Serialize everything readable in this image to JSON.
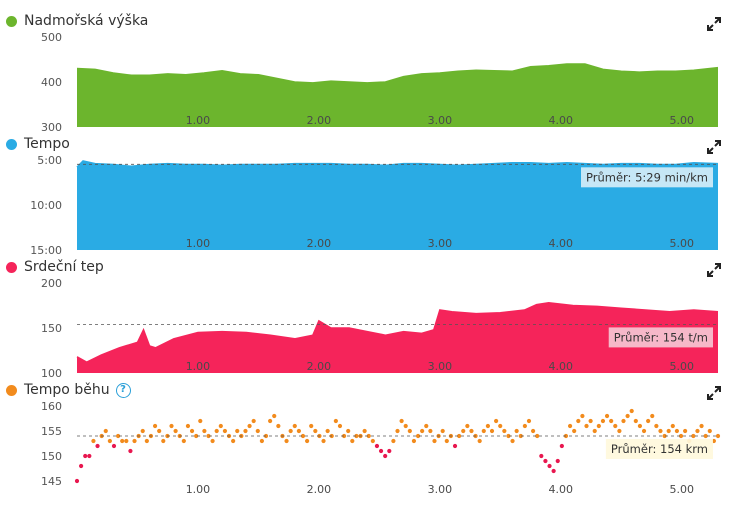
{
  "panels": [
    {
      "title": "Nadmořská výška",
      "color": "#6cb52d",
      "help": false,
      "chart_data": {
        "type": "area",
        "yticks": [
          "500",
          "400",
          "300"
        ],
        "ylim": [
          300,
          500
        ],
        "xticks": [
          "1.00",
          "2.00",
          "3.00",
          "4.00",
          "5.00"
        ],
        "x": [
          0,
          0.15,
          0.3,
          0.45,
          0.6,
          0.75,
          0.9,
          1.05,
          1.2,
          1.35,
          1.5,
          1.65,
          1.8,
          1.95,
          2.1,
          2.25,
          2.4,
          2.55,
          2.7,
          2.85,
          3.0,
          3.15,
          3.3,
          3.45,
          3.6,
          3.75,
          3.9,
          4.05,
          4.2,
          4.35,
          4.5,
          4.65,
          4.8,
          4.95,
          5.1,
          5.3
        ],
        "values": [
          430,
          428,
          420,
          415,
          415,
          418,
          416,
          420,
          425,
          418,
          416,
          408,
          400,
          398,
          402,
          400,
          398,
          400,
          412,
          418,
          420,
          424,
          426,
          425,
          424,
          434,
          436,
          440,
          440,
          428,
          424,
          422,
          424,
          424,
          426,
          432
        ],
        "average": null,
        "average_label": ""
      }
    },
    {
      "title": "Tempo",
      "color": "#2aabe4",
      "help": false,
      "chart_data": {
        "type": "area",
        "yticks": [
          "5:00",
          "10:00",
          "15:00"
        ],
        "ylim": [
          5,
          15
        ],
        "invert": true,
        "xticks": [
          "1.00",
          "2.00",
          "3.00",
          "4.00",
          "5.00"
        ],
        "x": [
          0,
          0.05,
          0.15,
          0.3,
          0.45,
          0.6,
          0.75,
          0.9,
          1.05,
          1.2,
          1.35,
          1.5,
          1.65,
          1.8,
          1.95,
          2.1,
          2.25,
          2.4,
          2.55,
          2.7,
          2.85,
          3.0,
          3.15,
          3.3,
          3.45,
          3.6,
          3.75,
          3.9,
          4.05,
          4.2,
          4.35,
          4.5,
          4.65,
          4.8,
          4.95,
          5.1,
          5.3
        ],
        "values": [
          5.8,
          5.1,
          5.4,
          5.5,
          5.7,
          5.5,
          5.4,
          5.5,
          5.5,
          5.6,
          5.5,
          5.5,
          5.5,
          5.4,
          5.4,
          5.4,
          5.5,
          5.5,
          5.6,
          5.4,
          5.4,
          5.5,
          5.6,
          5.5,
          5.4,
          5.3,
          5.3,
          5.4,
          5.3,
          5.4,
          5.5,
          5.4,
          5.4,
          5.5,
          5.5,
          5.3,
          5.4
        ],
        "average": 5.48,
        "average_label": "Průměr: 5:29 min/km"
      }
    },
    {
      "title": "Srdeční tep",
      "color": "#f5245a",
      "help": false,
      "chart_data": {
        "type": "area",
        "yticks": [
          "200",
          "150",
          "100"
        ],
        "ylim": [
          100,
          200
        ],
        "xticks": [
          "1.00",
          "2.00",
          "3.00",
          "4.00",
          "5.00"
        ],
        "x": [
          0,
          0.08,
          0.2,
          0.35,
          0.5,
          0.55,
          0.6,
          0.65,
          0.8,
          1.0,
          1.2,
          1.4,
          1.6,
          1.8,
          1.95,
          2.0,
          2.1,
          2.25,
          2.4,
          2.55,
          2.7,
          2.85,
          2.95,
          3.0,
          3.1,
          3.3,
          3.5,
          3.7,
          3.8,
          3.9,
          4.1,
          4.3,
          4.5,
          4.7,
          4.9,
          5.1,
          5.3
        ],
        "values": [
          118,
          112,
          120,
          128,
          134,
          148,
          130,
          128,
          138,
          145,
          146,
          145,
          142,
          138,
          142,
          158,
          150,
          150,
          146,
          142,
          146,
          144,
          148,
          170,
          168,
          166,
          167,
          170,
          176,
          178,
          175,
          174,
          172,
          170,
          168,
          170,
          168
        ],
        "average": 154,
        "average_label": "Průměr: 154 t/m"
      }
    },
    {
      "title": "Tempo běhu",
      "color": "#f28b1d",
      "help": true,
      "chart_data": {
        "type": "scatter",
        "yticks": [
          "160",
          "155",
          "150",
          "145"
        ],
        "ylim": [
          145,
          160
        ],
        "xticks": [
          "1.00",
          "2.00",
          "3.00",
          "4.00",
          "5.00"
        ],
        "x_range": [
          0,
          5.3
        ],
        "values": [
          145,
          148,
          150,
          150,
          153,
          152,
          154,
          155,
          153,
          152,
          154,
          153,
          153,
          151,
          153,
          154,
          155,
          153,
          154,
          156,
          155,
          153,
          154,
          156,
          155,
          154,
          153,
          156,
          155,
          154,
          157,
          155,
          154,
          153,
          155,
          156,
          155,
          154,
          153,
          155,
          154,
          155,
          156,
          157,
          155,
          153,
          154,
          157,
          158,
          156,
          154,
          153,
          155,
          156,
          155,
          154,
          153,
          156,
          155,
          154,
          153,
          155,
          154,
          157,
          156,
          154,
          155,
          153,
          154,
          154,
          155,
          154,
          153,
          152,
          151,
          150,
          151,
          153,
          155,
          157,
          156,
          155,
          153,
          154,
          155,
          156,
          155,
          153,
          154,
          155,
          153,
          154,
          152,
          154,
          155,
          156,
          155,
          154,
          153,
          155,
          156,
          155,
          157,
          156,
          155,
          154,
          153,
          155,
          154,
          156,
          157,
          155,
          154,
          150,
          149,
          148,
          147,
          149,
          152,
          154,
          156,
          155,
          157,
          158,
          156,
          157,
          155,
          156,
          157,
          158,
          157,
          156,
          155,
          157,
          158,
          159,
          157,
          156,
          155,
          157,
          158,
          156,
          155,
          154,
          155,
          156,
          155,
          154,
          155,
          153,
          154,
          155,
          156,
          154,
          155,
          153,
          154
        ],
        "average": 154,
        "average_label": "Průměr: 154 krm"
      }
    }
  ]
}
